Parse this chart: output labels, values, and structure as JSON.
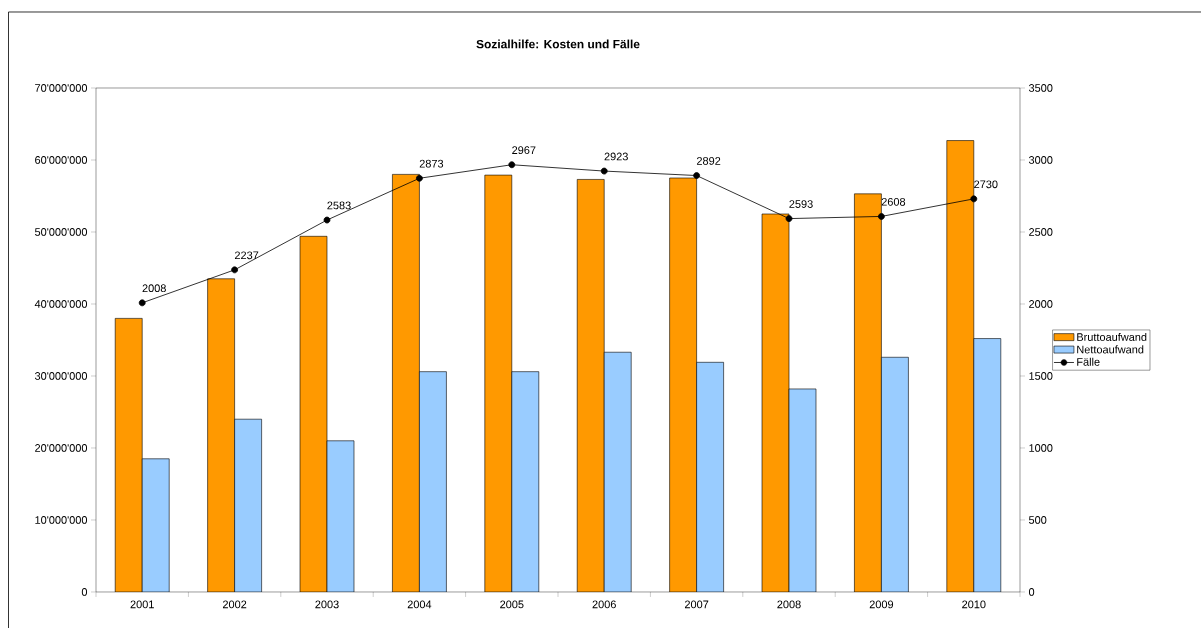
{
  "chart_data": {
    "type": "bar",
    "title": "Sozialhilfe: Kosten und Fälle",
    "categories": [
      "2001",
      "2002",
      "2003",
      "2004",
      "2005",
      "2006",
      "2007",
      "2008",
      "2009",
      "2010"
    ],
    "series": [
      {
        "name": "Bruttoaufwand",
        "color": "#ff9900",
        "values": [
          38000000,
          43500000,
          49400000,
          58000000,
          57900000,
          57300000,
          57500000,
          52500000,
          55300000,
          62700000
        ]
      },
      {
        "name": "Nettoaufwand",
        "color": "#99ccff",
        "values": [
          18500000,
          24000000,
          21000000,
          30600000,
          30600000,
          33300000,
          31900000,
          28200000,
          32600000,
          35200000
        ]
      },
      {
        "name": "Fälle",
        "type": "line",
        "axis": "y2",
        "color": "#000000",
        "marker": "circle",
        "values": [
          2008,
          2237,
          2583,
          2873,
          2967,
          2923,
          2892,
          2593,
          2608,
          2730
        ],
        "value_labels": [
          "2008",
          "2237",
          "2583",
          "2873",
          "2967",
          "2923",
          "2892",
          "2593",
          "2608",
          "2730"
        ]
      }
    ],
    "ylim": [
      0,
      70000000
    ],
    "yticks": [
      0,
      {
        "value": 10000000,
        "label": "10'000'000"
      },
      {
        "value": 20000000,
        "label": "20'000'000"
      },
      {
        "value": 30000000,
        "label": "30'000'000"
      },
      {
        "value": 40000000,
        "label": "40'000'000"
      },
      {
        "value": 50000000,
        "label": "50'000'000"
      },
      {
        "value": 60000000,
        "label": "60'000'000"
      },
      {
        "value": 70000000,
        "label": "70'000'000"
      }
    ],
    "y2lim": [
      0,
      3500
    ],
    "y2ticks": [
      0,
      500,
      1000,
      1500,
      2000,
      2500,
      3000,
      3500
    ],
    "legend": "right"
  }
}
